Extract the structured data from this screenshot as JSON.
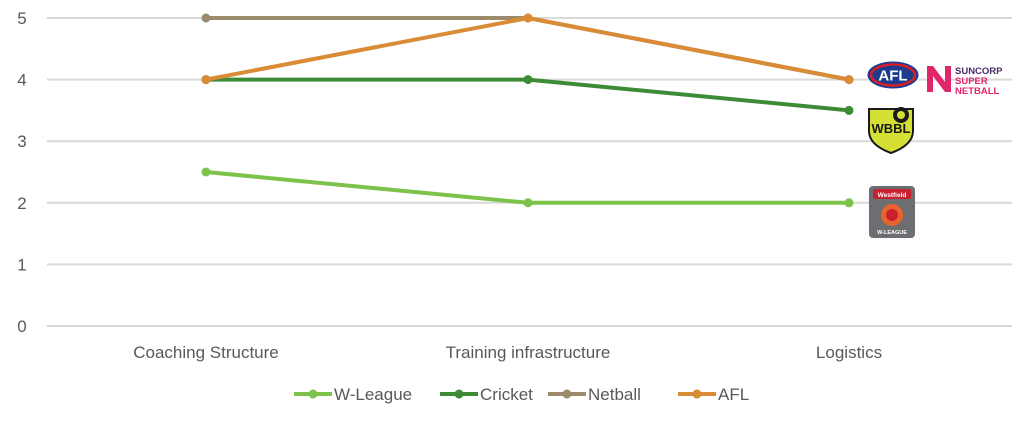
{
  "chart_data": {
    "type": "line",
    "categories": [
      "Coaching Structure",
      "Training infrastructure",
      "Logistics"
    ],
    "series": [
      {
        "name": "W-League",
        "values": [
          2.5,
          2,
          2
        ],
        "color": "#7dc24b"
      },
      {
        "name": "Cricket",
        "values": [
          4,
          4,
          3.5
        ],
        "color": "#3d8b37"
      },
      {
        "name": "Netball",
        "values": [
          5,
          5,
          4
        ],
        "color": "#9c8b6a"
      },
      {
        "name": "AFL",
        "values": [
          4,
          5,
          4
        ],
        "color": "#d98b36"
      }
    ],
    "ylim": [
      0,
      5
    ],
    "yticks": [
      "0",
      "1",
      "2",
      "3",
      "4",
      "5"
    ],
    "grid": true,
    "legend": "bottom",
    "title": "",
    "xlabel": "",
    "ylabel": ""
  },
  "logos": {
    "afl": {
      "text": "AFL",
      "icon": "afl-logo"
    },
    "netball": {
      "line1": "SUNCORP",
      "line2": "SUPER",
      "line3": "NETBALL",
      "icon": "suncorp-super-netball-logo"
    },
    "wbbl": {
      "text": "WBBL",
      "icon": "wbbl-logo"
    },
    "wleague": {
      "top": "Westfield",
      "bottom": "W-LEAGUE",
      "icon": "w-league-logo"
    }
  }
}
